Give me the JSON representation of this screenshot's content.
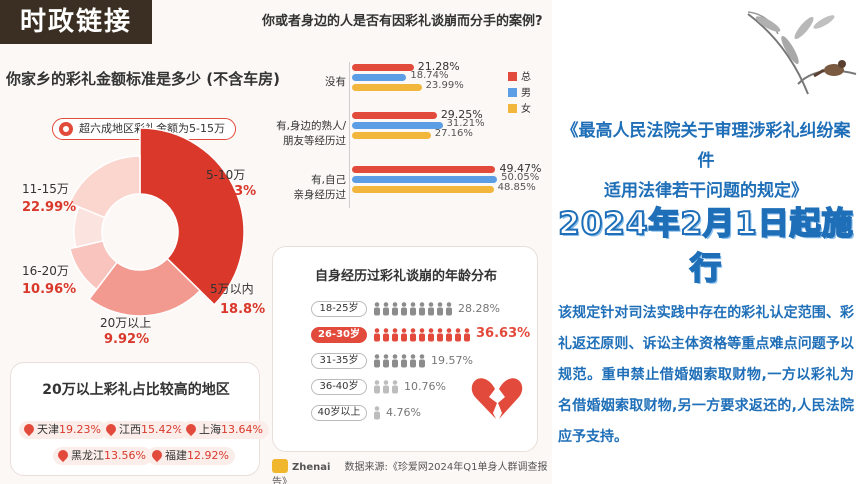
{
  "header": {
    "tag": "时政链接"
  },
  "question_title": "你或者身边的人是否有因彩礼谈崩而分手的案例?",
  "left_title": "你家乡的彩礼金额标准是多少 (不含车房)",
  "callout": "超六成地区彩礼金额为5-15万",
  "pie_labels": [
    {
      "label": "5-10万",
      "value": "37.33%"
    },
    {
      "label": "11-15万",
      "value": "22.99%"
    },
    {
      "label": "16-20万",
      "value": "10.96%"
    },
    {
      "label": "20万以上",
      "value": "9.92%"
    },
    {
      "label": "5万以内",
      "value": "18.8%"
    }
  ],
  "regions": {
    "title": "20万以上彩礼占比较高的地区",
    "items": [
      {
        "name": "天津",
        "pct": "19.23%"
      },
      {
        "name": "江西",
        "pct": "15.42%"
      },
      {
        "name": "上海",
        "pct": "13.64%"
      },
      {
        "name": "黑龙江",
        "pct": "13.56%"
      },
      {
        "name": "福建",
        "pct": "12.92%"
      }
    ]
  },
  "bar_labels": {
    "cat0_line1": "没有",
    "cat1_line1": "有,身边的熟人/",
    "cat1_line2": "朋友等经历过",
    "cat2_line1": "有,自己",
    "cat2_line2": "亲身经历过"
  },
  "bar_legend": {
    "total": "总",
    "male": "男",
    "female": "女"
  },
  "age": {
    "title": "自身经历过彩礼谈崩的年龄分布",
    "rows": [
      {
        "label": "18-25岁",
        "pct": "28.28%"
      },
      {
        "label": "26-30岁",
        "pct": "36.63%"
      },
      {
        "label": "31-35岁",
        "pct": "19.57%"
      },
      {
        "label": "36-40岁",
        "pct": "10.76%"
      },
      {
        "label": "40岁以上",
        "pct": "4.76%"
      }
    ]
  },
  "footer": {
    "brand": "Zhenai",
    "source": "数据来源:《珍爱网2024年Q1单身人群调查报告》"
  },
  "right_panel": {
    "title_line1": "《最高人民法院关于审理涉彩礼纠纷案件",
    "title_line2": "适用法律若干问题的规定》",
    "date": "2024年2月1日起施行",
    "body": "该规定针对司法实践中存在的彩礼认定范围、彩礼返还原则、诉讼主体资格等重点难点问题予以规范。重申禁止借婚姻索取财物,一方以彩礼为名借婚姻索取财物,另一方要求返还的,人民法院应予支持。"
  },
  "colors": {
    "accent": "#e24a3b",
    "male": "#5b9ee6",
    "female": "#f3b63c",
    "title_blue": "#1f6fb8"
  },
  "chart_data": [
    {
      "type": "pie",
      "title": "你家乡的彩礼金额标准是多少 (不含车房)",
      "categories": [
        "5-10万",
        "11-15万",
        "16-20万",
        "20万以上",
        "5万以内"
      ],
      "values": [
        37.33,
        22.99,
        10.96,
        9.92,
        18.8
      ]
    },
    {
      "type": "bar",
      "title": "你或者身边的人是否有因彩礼谈崩而分手的案例?",
      "categories": [
        "没有",
        "有,身边的熟人/朋友等经历过",
        "有,自己亲身经历过"
      ],
      "series": [
        {
          "name": "总",
          "values": [
            21.28,
            29.25,
            49.47
          ]
        },
        {
          "name": "男",
          "values": [
            18.74,
            31.21,
            50.05
          ]
        },
        {
          "name": "女",
          "values": [
            23.99,
            27.16,
            48.85
          ]
        }
      ]
    },
    {
      "type": "bar",
      "title": "自身经历过彩礼谈崩的年龄分布",
      "categories": [
        "18-25岁",
        "26-30岁",
        "31-35岁",
        "36-40岁",
        "40岁以上"
      ],
      "values": [
        28.28,
        36.63,
        19.57,
        10.76,
        4.76
      ]
    }
  ]
}
